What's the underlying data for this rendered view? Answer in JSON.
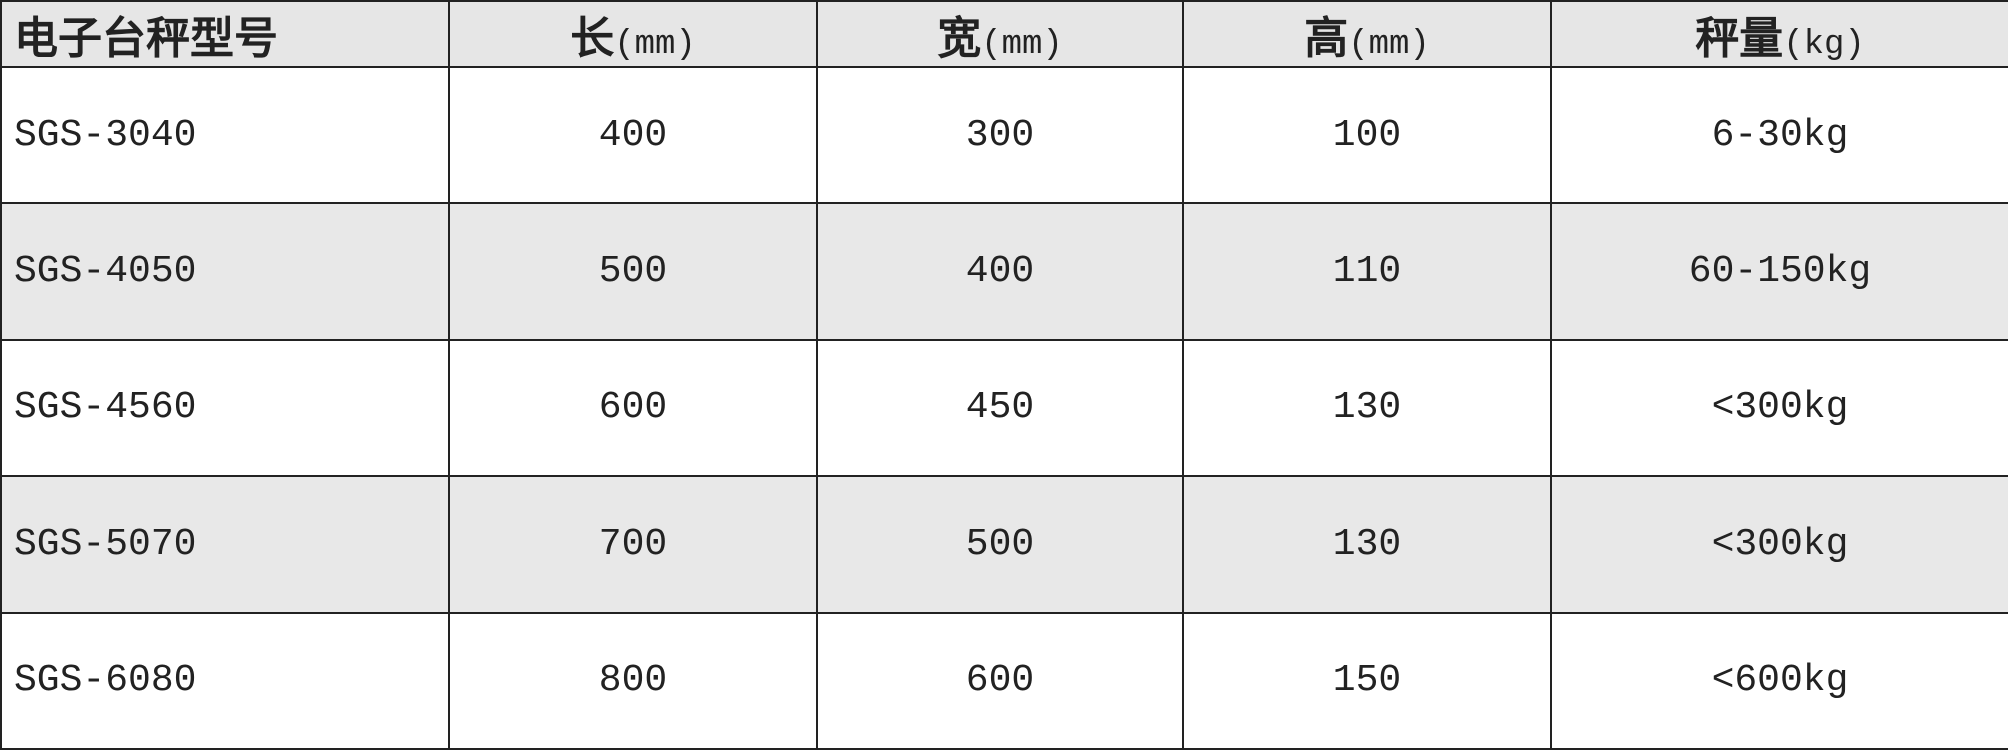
{
  "table": {
    "headers": [
      {
        "label": "电子台秤型号",
        "unit": ""
      },
      {
        "label": "长",
        "unit": "(mm)"
      },
      {
        "label": "宽",
        "unit": "(mm)"
      },
      {
        "label": "高",
        "unit": "(mm)"
      },
      {
        "label": "秤量",
        "unit": "(kg)"
      }
    ],
    "rows": [
      [
        "SGS-3040",
        "400",
        "300",
        "100",
        "6-30kg"
      ],
      [
        "SGS-4050",
        "500",
        "400",
        "110",
        "60-150kg"
      ],
      [
        "SGS-4560",
        "600",
        "450",
        "130",
        "<300kg"
      ],
      [
        "SGS-5070",
        "700",
        "500",
        "130",
        "<300kg"
      ],
      [
        "SGS-6080",
        "800",
        "600",
        "150",
        "<600kg"
      ]
    ]
  },
  "colors": {
    "header_bg": "#e6e6e6",
    "alt_row_bg": "#e8e8e8",
    "border": "#222222"
  }
}
